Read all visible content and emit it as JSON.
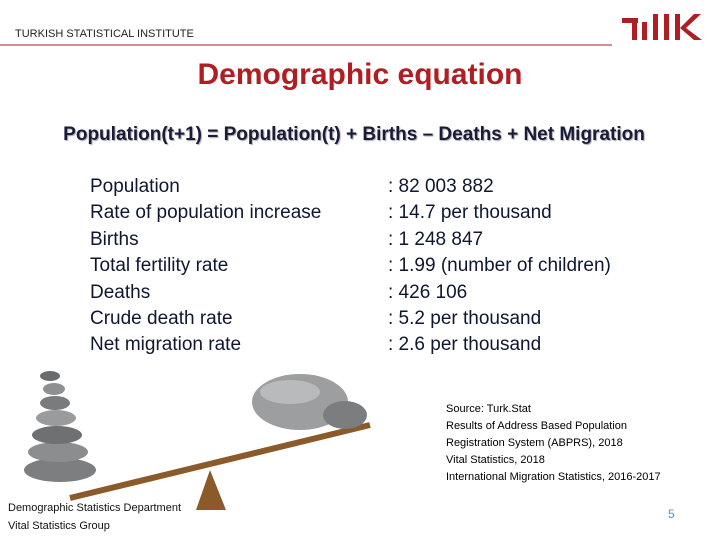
{
  "header": {
    "organization": "TURKISH STATISTICAL INSTITUTE"
  },
  "title": "Demographic equation",
  "equation": "Population(t+1) = Population(t) + Births – Deaths + Net Migration",
  "table": {
    "rows": [
      [
        "Population",
        ": 82 003 882"
      ],
      [
        "Rate of population increase",
        ": 14.7 per thousand"
      ],
      [
        "Births",
        ": 1 248 847"
      ],
      [
        "Total fertility rate",
        ": 1.99 (number of children)"
      ],
      [
        "Deaths",
        ": 426 106"
      ],
      [
        "Crude death rate",
        ": 5.2 per thousand"
      ],
      [
        "Net migration rate",
        ": 2.6 per thousand"
      ]
    ]
  },
  "source": [
    "Source: Turk.Stat",
    "Results of Address Based Population",
    "Registration System (ABPRS), 2018",
    "Vital Statistics, 2018",
    "International Migration Statistics, 2016-2017"
  ],
  "footer": {
    "department": "Demographic Statistics Department",
    "group": "Vital Statistics Group",
    "page": "5"
  }
}
